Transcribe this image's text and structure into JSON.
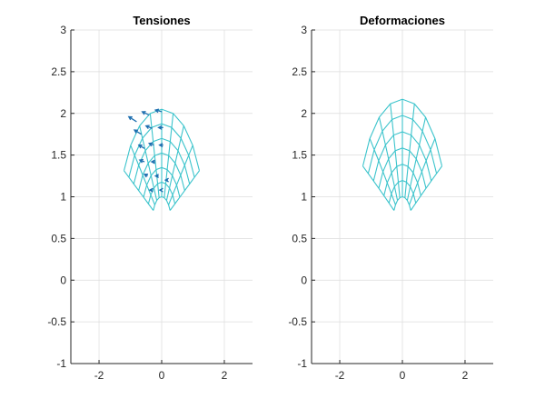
{
  "figure": {
    "background": "#ffffff",
    "mesh_color": "#3cc4cc",
    "arrow_color": "#1f6fb0",
    "grid": true
  },
  "chart_data": [
    {
      "type": "quiver-mesh",
      "title": "Tensiones",
      "xlim": [
        -2.9,
        2.9
      ],
      "ylim": [
        -1,
        3
      ],
      "xticks": [
        -2,
        0,
        2
      ],
      "yticks": [
        -1,
        -0.5,
        0,
        0.5,
        1,
        1.5,
        2,
        2.5,
        3
      ],
      "ytick_labels": [
        "-1",
        "-0.5",
        "0",
        "0.5",
        "1",
        "1.5",
        "2",
        "2.5",
        "3"
      ],
      "xtick_labels": [
        "-2",
        "0",
        "2"
      ],
      "mesh": {
        "arch_center": [
          0,
          0.7
        ],
        "inner_radius": 0.3,
        "outer_radius": 1.35,
        "rings": 7,
        "half_angle_deg": 63,
        "radial_lines": 9,
        "top_extra": 0
      },
      "arrows": [
        {
          "x": -0.55,
          "y": 1.58,
          "u": -0.18,
          "v": 0.04
        },
        {
          "x": -0.25,
          "y": 1.62,
          "u": -0.15,
          "v": 0.02
        },
        {
          "x": 0.05,
          "y": 1.62,
          "u": -0.12,
          "v": 0.0
        },
        {
          "x": -0.65,
          "y": 1.75,
          "u": -0.22,
          "v": 0.05
        },
        {
          "x": -0.3,
          "y": 1.82,
          "u": -0.2,
          "v": 0.03
        },
        {
          "x": 0.05,
          "y": 1.83,
          "u": -0.15,
          "v": 0.0
        },
        {
          "x": -0.8,
          "y": 1.9,
          "u": -0.25,
          "v": 0.06
        },
        {
          "x": -0.4,
          "y": 1.98,
          "u": -0.22,
          "v": 0.04
        },
        {
          "x": 0.0,
          "y": 2.02,
          "u": -0.2,
          "v": 0.02
        },
        {
          "x": -0.55,
          "y": 1.42,
          "u": -0.15,
          "v": 0.02
        },
        {
          "x": -0.2,
          "y": 1.42,
          "u": -0.12,
          "v": 0.0
        },
        {
          "x": -0.45,
          "y": 1.25,
          "u": -0.1,
          "v": 0.02
        },
        {
          "x": -0.1,
          "y": 1.25,
          "u": -0.1,
          "v": 0.0
        },
        {
          "x": 0.2,
          "y": 1.2,
          "u": -0.08,
          "v": 0.0
        },
        {
          "x": -0.3,
          "y": 1.08,
          "u": -0.08,
          "v": 0.0
        },
        {
          "x": 0.0,
          "y": 1.08,
          "u": -0.06,
          "v": 0.0
        }
      ]
    },
    {
      "type": "mesh",
      "title": "Deformaciones",
      "xlim": [
        -2.9,
        2.9
      ],
      "ylim": [
        -1,
        3
      ],
      "xticks": [
        -2,
        0,
        2
      ],
      "yticks": [
        -1,
        -0.5,
        0,
        0.5,
        1,
        1.5,
        2,
        2.5,
        3
      ],
      "ytick_labels": [
        "-1",
        "-0.5",
        "0",
        "0.5",
        "1",
        "1.5",
        "2",
        "2.5",
        "3"
      ],
      "xtick_labels": [
        "-2",
        "0",
        "2"
      ],
      "mesh": {
        "arch_center": [
          0,
          0.7
        ],
        "inner_radius": 0.3,
        "outer_radius": 1.35,
        "rings": 7,
        "half_angle_deg": 63,
        "radial_lines": 9,
        "top_extra": 0.12
      },
      "arrows": []
    }
  ]
}
